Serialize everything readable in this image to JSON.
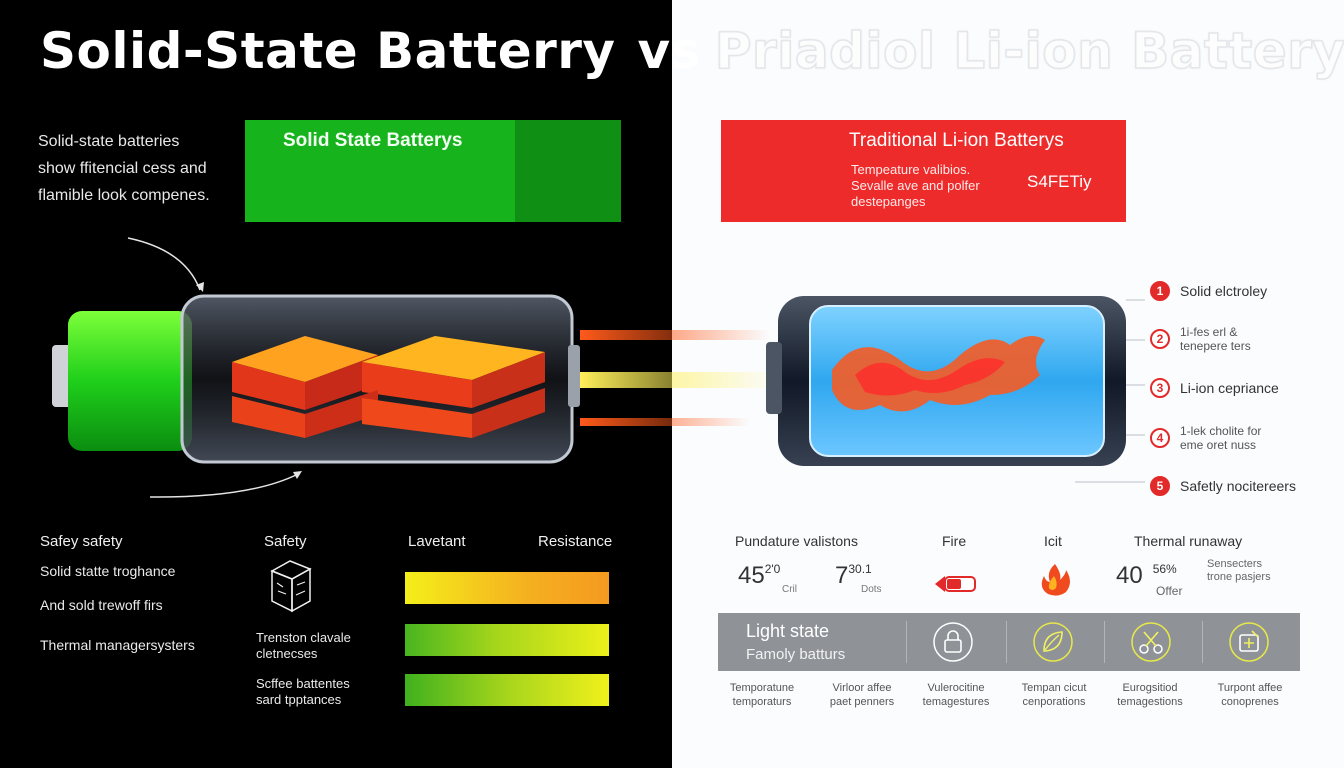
{
  "title": {
    "part1": "Solid-State Batterry",
    "vs": "vs",
    "part2": "Priadiol Li-ion Battery"
  },
  "intro": {
    "line1": "Solid-state batteries",
    "line2": "show ffitencial cess and",
    "line3": "flamible look compenes."
  },
  "green_box": {
    "label": "Solid State Batterys",
    "color": "#17b31d"
  },
  "red_box": {
    "label": "Traditional Li-ion  Batterys",
    "sub1": "Tempeature valibios.",
    "sub2": "Sevalle ave and polfer",
    "sub3": "destepanges",
    "tag": "S4FETiy",
    "color": "#ee2b2b"
  },
  "legend": [
    {
      "badge": "1",
      "lines": [
        "Solid elctroley"
      ]
    },
    {
      "badge": "2",
      "lines": [
        "1i-fes erl &",
        "tenepere ters"
      ]
    },
    {
      "badge": "3",
      "lines": [
        "Li-ion cepriance"
      ]
    },
    {
      "badge": "4",
      "lines": [
        "1-lek cholite for",
        "eme oret nuss"
      ]
    },
    {
      "badge": "5",
      "lines": [
        "Safetly nocitereers"
      ]
    }
  ],
  "left_table": {
    "headers": [
      "Safey safety",
      "Safety",
      "Lavetant",
      "Resistance"
    ],
    "rows": [
      "Solid statte troghance",
      "And sold trewoff firs",
      "Thermal managersysters"
    ],
    "mid_labels": [
      [
        "Trenston clavale",
        "cletnecses"
      ],
      [
        "Scffee battentes",
        "sard tpptances"
      ]
    ],
    "icon": "cube-icon"
  },
  "right_table": {
    "headers": [
      "Pundature valistons",
      "Fire",
      "Icit",
      "Thermal runaway"
    ],
    "stats": [
      {
        "value": "45",
        "sup": "2'0",
        "sub": "Cril"
      },
      {
        "value": "7",
        "sup": "30.1",
        "sub": "Dots"
      },
      {
        "value": "40",
        "sup": "56%",
        "sub": "Offer"
      }
    ],
    "side_note": [
      "Sensecters",
      "trone pasjers"
    ]
  },
  "band": {
    "line1": "Light state",
    "line2": "Famoly batturs",
    "icons": [
      "lock-icon",
      "leaf-icon",
      "scissors-icon",
      "cell-icon"
    ]
  },
  "footer": [
    [
      "Temporatune",
      "temporaturs"
    ],
    [
      "Virloor affee",
      "paet penners"
    ],
    [
      "Vulerocitine",
      "temagestures"
    ],
    [
      "Tempan cicut",
      "cenporations"
    ],
    [
      "Eurogsitiod",
      "temagestions"
    ],
    [
      "Turpont affee",
      "conoprenes"
    ]
  ]
}
